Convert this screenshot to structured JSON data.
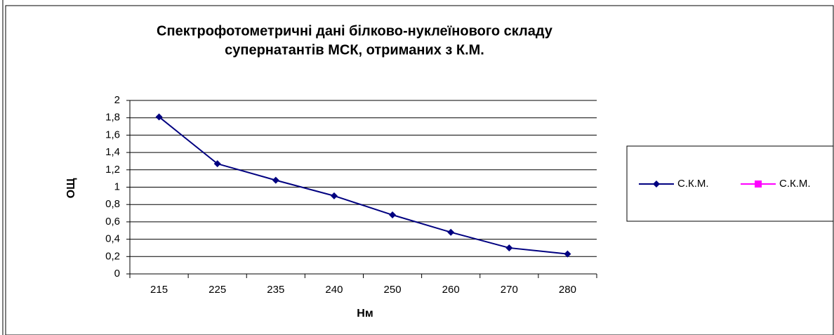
{
  "chart_data": {
    "type": "line",
    "title": [
      "Спектрофотометричні дані білково-нуклеїнового складу",
      "супернатантів МСК, отриманих з К.М."
    ],
    "x_label": "Нм",
    "y_label": "ОЩ",
    "categories": [
      "215",
      "225",
      "235",
      "240",
      "250",
      "260",
      "270",
      "280"
    ],
    "series": [
      {
        "name": "С.К.М.",
        "color": "#000080",
        "values": [
          1.81,
          1.27,
          1.08,
          0.9,
          0.68,
          0.48,
          0.3,
          0.23
        ]
      },
      {
        "name": "С.К.М.",
        "color": "#ff00ff",
        "values": [
          null,
          null,
          null,
          null,
          null,
          null,
          null,
          null
        ]
      }
    ],
    "ylim": [
      0,
      2
    ],
    "yticks": [
      0,
      {
        "value": 0.2,
        "label": "0,2"
      },
      {
        "value": 0.4,
        "label": "0,4"
      },
      {
        "value": 0.6,
        "label": "0,6"
      },
      {
        "value": 0.8,
        "label": "0,8"
      },
      1,
      {
        "value": 1.2,
        "label": "1,2"
      },
      {
        "value": 1.4,
        "label": "1,4"
      },
      {
        "value": 1.6,
        "label": "1,6"
      },
      {
        "value": 1.8,
        "label": "1,8"
      },
      2
    ],
    "grid": true,
    "legend": "right"
  }
}
